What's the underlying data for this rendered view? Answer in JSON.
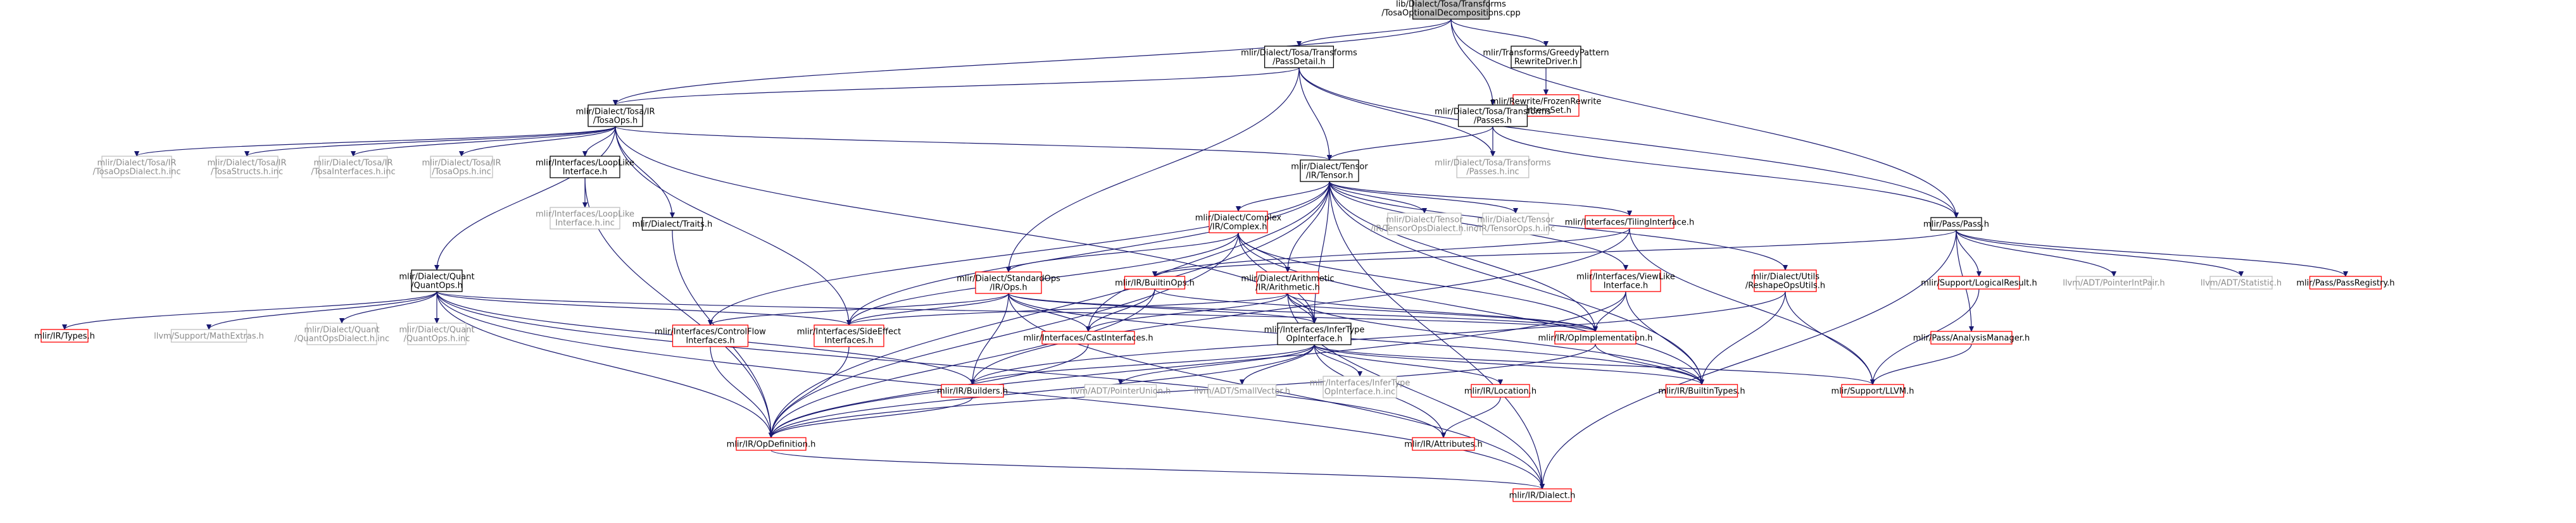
{
  "colors": {
    "root_fill": "#bfbfbf",
    "box_fill": "#ffffff",
    "black": "#000000",
    "red": "#ff0000",
    "grey": "#bfbfbf",
    "edge": "#191970",
    "text": "#000000",
    "text_grey": "#8c8c8c"
  },
  "nodes": [
    {
      "id": "root",
      "lines": [
        "lib/Dialect/Tosa/Transforms",
        "/TosaOptionalDecompositions.cpp"
      ],
      "style": "root"
    },
    {
      "id": "passdetail",
      "lines": [
        "mlir/Dialect/Tosa/Transforms",
        "/PassDetail.h"
      ],
      "style": "black"
    },
    {
      "id": "greedy",
      "lines": [
        "mlir/Transforms/GreedyPattern",
        "RewriteDriver.h"
      ],
      "style": "black"
    },
    {
      "id": "frozen",
      "lines": [
        "mlir/Rewrite/FrozenRewrite",
        "PatternSet.h"
      ],
      "style": "red"
    },
    {
      "id": "tosaops",
      "lines": [
        "mlir/Dialect/Tosa/IR",
        "/TosaOps.h"
      ],
      "style": "black"
    },
    {
      "id": "tosapasses",
      "lines": [
        "mlir/Dialect/Tosa/Transforms",
        "/Passes.h"
      ],
      "style": "black"
    },
    {
      "id": "tosapassesinc",
      "lines": [
        "mlir/Dialect/Tosa/Transforms",
        "/Passes.h.inc"
      ],
      "style": "grey"
    },
    {
      "id": "tensor",
      "lines": [
        "mlir/Dialect/Tensor",
        "/IR/Tensor.h"
      ],
      "style": "black"
    },
    {
      "id": "tosaopsdialect",
      "lines": [
        "mlir/Dialect/Tosa/IR",
        "/TosaOpsDialect.h.inc"
      ],
      "style": "grey"
    },
    {
      "id": "tosastructs",
      "lines": [
        "mlir/Dialect/Tosa/IR",
        "/TosaStructs.h.inc"
      ],
      "style": "grey"
    },
    {
      "id": "tosainterfaces",
      "lines": [
        "mlir/Dialect/Tosa/IR",
        "/TosaInterfaces.h.inc"
      ],
      "style": "grey"
    },
    {
      "id": "tosaopsinc",
      "lines": [
        "mlir/Dialect/Tosa/IR",
        "/TosaOps.h.inc"
      ],
      "style": "grey"
    },
    {
      "id": "looplike",
      "lines": [
        "mlir/Interfaces/LoopLike",
        "Interface.h"
      ],
      "style": "black"
    },
    {
      "id": "looplikeinc",
      "lines": [
        "mlir/Interfaces/LoopLike",
        "Interface.h.inc"
      ],
      "style": "grey"
    },
    {
      "id": "traits",
      "lines": [
        "mlir/Dialect/Traits.h"
      ],
      "style": "black"
    },
    {
      "id": "complex",
      "lines": [
        "mlir/Dialect/Complex",
        "/IR/Complex.h"
      ],
      "style": "red"
    },
    {
      "id": "tensordialect",
      "lines": [
        "mlir/Dialect/Tensor",
        "/IR/TensorOpsDialect.h.inc"
      ],
      "style": "grey"
    },
    {
      "id": "tensorops",
      "lines": [
        "mlir/Dialect/Tensor",
        "/IR/TensorOps.h.inc"
      ],
      "style": "grey"
    },
    {
      "id": "tiling",
      "lines": [
        "mlir/Interfaces/TilingInterface.h"
      ],
      "style": "red"
    },
    {
      "id": "pass",
      "lines": [
        "mlir/Pass/Pass.h"
      ],
      "style": "black"
    },
    {
      "id": "quant",
      "lines": [
        "mlir/Dialect/Quant",
        "/QuantOps.h"
      ],
      "style": "black"
    },
    {
      "id": "standardops",
      "lines": [
        "mlir/Dialect/StandardOps",
        "/IR/Ops.h"
      ],
      "style": "red"
    },
    {
      "id": "builtinops",
      "lines": [
        "mlir/IR/BuiltinOps.h"
      ],
      "style": "red"
    },
    {
      "id": "arith",
      "lines": [
        "mlir/Dialect/Arithmetic",
        "/IR/Arithmetic.h"
      ],
      "style": "red"
    },
    {
      "id": "viewlike",
      "lines": [
        "mlir/Interfaces/ViewLike",
        "Interface.h"
      ],
      "style": "red"
    },
    {
      "id": "utils",
      "lines": [
        "mlir/Dialect/Utils",
        "/ReshapeOpsUtils.h"
      ],
      "style": "red"
    },
    {
      "id": "logicalresult",
      "lines": [
        "mlir/Support/LogicalResult.h"
      ],
      "style": "red"
    },
    {
      "id": "pointerintpair",
      "lines": [
        "llvm/ADT/PointerIntPair.h"
      ],
      "style": "grey"
    },
    {
      "id": "statistic",
      "lines": [
        "llvm/ADT/Statistic.h"
      ],
      "style": "grey"
    },
    {
      "id": "passregistry",
      "lines": [
        "mlir/Pass/PassRegistry.h"
      ],
      "style": "red"
    },
    {
      "id": "types",
      "lines": [
        "mlir/IR/Types.h"
      ],
      "style": "red"
    },
    {
      "id": "mathextras",
      "lines": [
        "llvm/Support/MathExtras.h"
      ],
      "style": "grey"
    },
    {
      "id": "quantdialect",
      "lines": [
        "mlir/Dialect/Quant",
        "/QuantOpsDialect.h.inc"
      ],
      "style": "grey"
    },
    {
      "id": "quantopsinc",
      "lines": [
        "mlir/Dialect/Quant",
        "/QuantOps.h.inc"
      ],
      "style": "grey"
    },
    {
      "id": "controlflow",
      "lines": [
        "mlir/Interfaces/ControlFlow",
        "Interfaces.h"
      ],
      "style": "red"
    },
    {
      "id": "sideeffect",
      "lines": [
        "mlir/Interfaces/SideEffect",
        "Interfaces.h"
      ],
      "style": "red"
    },
    {
      "id": "cast",
      "lines": [
        "mlir/Interfaces/CastInterfaces.h"
      ],
      "style": "red"
    },
    {
      "id": "infertype",
      "lines": [
        "mlir/Interfaces/InferType",
        "OpInterface.h"
      ],
      "style": "black"
    },
    {
      "id": "opimpl",
      "lines": [
        "mlir/IR/OpImplementation.h"
      ],
      "style": "red"
    },
    {
      "id": "passmanager",
      "lines": [
        "mlir/Pass/AnalysisManager.h"
      ],
      "style": "red"
    },
    {
      "id": "builders",
      "lines": [
        "mlir/IR/Builders.h"
      ],
      "style": "red"
    },
    {
      "id": "pointerunion",
      "lines": [
        "llvm/ADT/PointerUnion.h"
      ],
      "style": "grey"
    },
    {
      "id": "smallvector",
      "lines": [
        "llvm/ADT/SmallVector.h"
      ],
      "style": "grey"
    },
    {
      "id": "infertypeinc",
      "lines": [
        "mlir/Interfaces/InferType",
        "OpInterface.h.inc"
      ],
      "style": "grey"
    },
    {
      "id": "location",
      "lines": [
        "mlir/IR/Location.h"
      ],
      "style": "red"
    },
    {
      "id": "builtintypes",
      "lines": [
        "mlir/IR/BuiltinTypes.h"
      ],
      "style": "red"
    },
    {
      "id": "llvm",
      "lines": [
        "mlir/Support/LLVM.h"
      ],
      "style": "red"
    },
    {
      "id": "opdef",
      "lines": [
        "mlir/IR/OpDefinition.h"
      ],
      "style": "red"
    },
    {
      "id": "attributes",
      "lines": [
        "mlir/IR/Attributes.h"
      ],
      "style": "red"
    },
    {
      "id": "dialect",
      "lines": [
        "mlir/IR/Dialect.h"
      ],
      "style": "red"
    }
  ],
  "edges": [
    [
      "root",
      "passdetail"
    ],
    [
      "root",
      "greedy"
    ],
    [
      "root",
      "tosaops"
    ],
    [
      "root",
      "tosapasses"
    ],
    [
      "root",
      "pass"
    ],
    [
      "greedy",
      "frozen"
    ],
    [
      "passdetail",
      "tosaops"
    ],
    [
      "passdetail",
      "tosapassesinc"
    ],
    [
      "passdetail",
      "tensor"
    ],
    [
      "passdetail",
      "standardops"
    ],
    [
      "passdetail",
      "pass"
    ],
    [
      "tosapasses",
      "tensor"
    ],
    [
      "tosapasses",
      "tosapassesinc"
    ],
    [
      "tosapasses",
      "pass"
    ],
    [
      "tosaops",
      "tosaopsdialect"
    ],
    [
      "tosaops",
      "tosastructs"
    ],
    [
      "tosaops",
      "tosainterfaces"
    ],
    [
      "tosaops",
      "tosaopsinc"
    ],
    [
      "tosaops",
      "looplike"
    ],
    [
      "tosaops",
      "traits"
    ],
    [
      "tosaops",
      "tensor"
    ],
    [
      "tosaops",
      "quant"
    ],
    [
      "tosaops",
      "sideeffect"
    ],
    [
      "tosaops",
      "infertype"
    ],
    [
      "looplike",
      "looplikeinc"
    ],
    [
      "looplike",
      "opdef"
    ],
    [
      "traits",
      "opdef"
    ],
    [
      "tensor",
      "complex"
    ],
    [
      "tensor",
      "tensordialect"
    ],
    [
      "tensor",
      "tensorops"
    ],
    [
      "tensor",
      "tiling"
    ],
    [
      "tensor",
      "viewlike"
    ],
    [
      "tensor",
      "utils"
    ],
    [
      "tensor",
      "arith"
    ],
    [
      "tensor",
      "controlflow"
    ],
    [
      "tensor",
      "sideeffect"
    ],
    [
      "tensor",
      "cast"
    ],
    [
      "tensor",
      "infertype"
    ],
    [
      "tensor",
      "opimpl"
    ],
    [
      "tensor",
      "builtintypes"
    ],
    [
      "tensor",
      "dialect"
    ],
    [
      "tensor",
      "opdef"
    ],
    [
      "complex",
      "arith"
    ],
    [
      "complex",
      "standardops"
    ],
    [
      "complex",
      "sideeffect"
    ],
    [
      "complex",
      "opimpl"
    ],
    [
      "complex",
      "builtintypes"
    ],
    [
      "complex",
      "infertype"
    ],
    [
      "complex",
      "opdef"
    ],
    [
      "tiling",
      "builtinops"
    ],
    [
      "tiling",
      "builders"
    ],
    [
      "tiling",
      "llvm"
    ],
    [
      "pass",
      "passmanager"
    ],
    [
      "pass",
      "logicalresult"
    ],
    [
      "pass",
      "pointerintpair"
    ],
    [
      "pass",
      "statistic"
    ],
    [
      "pass",
      "passregistry"
    ],
    [
      "pass",
      "dialect"
    ],
    [
      "pass",
      "builtinops"
    ],
    [
      "quant",
      "types"
    ],
    [
      "quant",
      "mathextras"
    ],
    [
      "quant",
      "quantdialect"
    ],
    [
      "quant",
      "quantopsinc"
    ],
    [
      "quant",
      "opdef"
    ],
    [
      "quant",
      "sideeffect"
    ],
    [
      "quant",
      "builders"
    ],
    [
      "quant",
      "attributes"
    ],
    [
      "quant",
      "dialect"
    ],
    [
      "quant",
      "opimpl"
    ],
    [
      "standardops",
      "controlflow"
    ],
    [
      "standardops",
      "sideeffect"
    ],
    [
      "standardops",
      "cast"
    ],
    [
      "standardops",
      "infertype"
    ],
    [
      "standardops",
      "builders"
    ],
    [
      "standardops",
      "opimpl"
    ],
    [
      "standardops",
      "builtintypes"
    ],
    [
      "standardops",
      "dialect"
    ],
    [
      "builtinops",
      "opdef"
    ],
    [
      "builtinops",
      "cast"
    ],
    [
      "builtinops",
      "opimpl"
    ],
    [
      "arith",
      "infertype"
    ],
    [
      "arith",
      "sideeffect"
    ],
    [
      "arith",
      "cast"
    ],
    [
      "arith",
      "opimpl"
    ],
    [
      "arith",
      "builtintypes"
    ],
    [
      "arith",
      "dialect"
    ],
    [
      "viewlike",
      "opdef"
    ],
    [
      "viewlike",
      "builtintypes"
    ],
    [
      "viewlike",
      "opimpl"
    ],
    [
      "utils",
      "builtintypes"
    ],
    [
      "utils",
      "builders"
    ],
    [
      "utils",
      "llvm"
    ],
    [
      "logicalresult",
      "llvm"
    ],
    [
      "passmanager",
      "llvm"
    ],
    [
      "controlflow",
      "opdef"
    ],
    [
      "sideeffect",
      "opdef"
    ],
    [
      "cast",
      "opdef"
    ],
    [
      "infertype",
      "builtintypes"
    ],
    [
      "infertype",
      "builders"
    ],
    [
      "infertype",
      "pointerunion"
    ],
    [
      "infertype",
      "smallvector"
    ],
    [
      "infertype",
      "infertypeinc"
    ],
    [
      "infertype",
      "location"
    ],
    [
      "infertype",
      "attributes"
    ],
    [
      "infertype",
      "llvm"
    ],
    [
      "infertype",
      "opdef"
    ],
    [
      "opimpl",
      "builtintypes"
    ],
    [
      "opimpl",
      "opdef"
    ],
    [
      "builders",
      "opdef"
    ],
    [
      "location",
      "attributes"
    ],
    [
      "opdef",
      "dialect"
    ]
  ]
}
